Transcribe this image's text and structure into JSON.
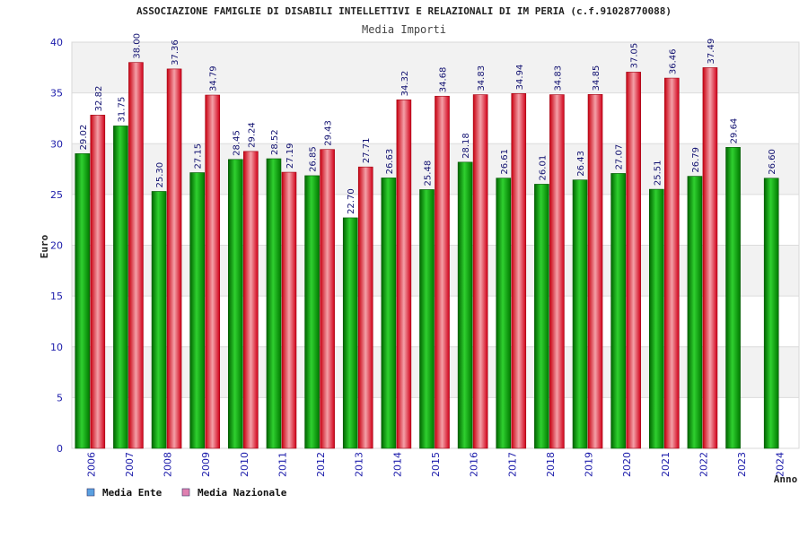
{
  "chart_data": {
    "type": "bar",
    "title": "ASSOCIAZIONE FAMIGLIE DI DISABILI INTELLETTIVI E RELAZIONALI DI IM PERIA (c.f.91028770088)",
    "subtitle": "Media Importi",
    "xlabel": "Anno",
    "ylabel": "Euro",
    "ylim": [
      0,
      40
    ],
    "yticks": [
      0,
      5,
      10,
      15,
      20,
      25,
      30,
      35,
      40
    ],
    "grid": true,
    "legend_position": "bottom-left",
    "categories": [
      "2006",
      "2007",
      "2008",
      "2009",
      "2010",
      "2011",
      "2012",
      "2013",
      "2014",
      "2015",
      "2016",
      "2017",
      "2018",
      "2019",
      "2020",
      "2021",
      "2022",
      "2023",
      "2024"
    ],
    "series": [
      {
        "name": "Media Ente",
        "color": "#00b000",
        "values": [
          29.02,
          31.75,
          25.3,
          27.15,
          28.45,
          28.52,
          26.85,
          22.7,
          26.63,
          25.48,
          28.18,
          26.61,
          26.01,
          26.43,
          27.07,
          25.51,
          26.79,
          29.64,
          26.6
        ],
        "labels": [
          "29.02",
          "31.75",
          "25.30",
          "27.15",
          "28.45",
          "28.52",
          "26.85",
          "22.70",
          "26.63",
          "25.48",
          "28.18",
          "26.61",
          "26.01",
          "26.43",
          "27.07",
          "25.51",
          "26.79",
          "29.64",
          "26.60"
        ]
      },
      {
        "name": "Media Nazionale",
        "color": "#e0202a",
        "values": [
          32.82,
          38.0,
          37.36,
          34.79,
          29.24,
          27.19,
          29.43,
          27.71,
          34.32,
          34.68,
          34.83,
          34.94,
          34.83,
          34.85,
          37.05,
          36.46,
          37.49,
          null,
          null
        ],
        "labels": [
          "32.82",
          "38.00",
          "37.36",
          "34.79",
          "29.24",
          "27.19",
          "29.43",
          "27.71",
          "34.32",
          "34.68",
          "34.83",
          "34.94",
          "34.83",
          "34.85",
          "37.05",
          "36.46",
          "37.49",
          null,
          null
        ]
      }
    ],
    "legend": [
      {
        "label": "Media Ente",
        "swatch_color": "#5aa0e0"
      },
      {
        "label": "Media Nazionale",
        "swatch_color": "#e080b0"
      }
    ]
  }
}
